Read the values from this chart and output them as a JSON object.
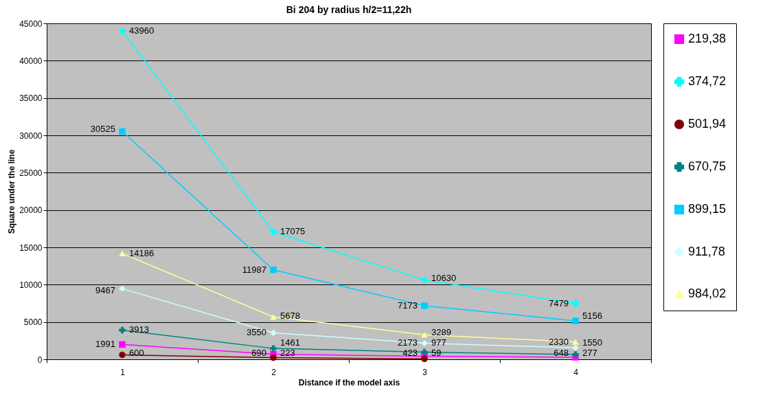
{
  "chart_data": {
    "type": "line",
    "title": "Bi 204 by radius h/2=11,22h",
    "xlabel": "Distance if the model axis",
    "ylabel": "Square under the line",
    "categories": [
      "1",
      "2",
      "3",
      "4"
    ],
    "series": [
      {
        "name": "219,38",
        "color": "#ff00ff",
        "marker": "square",
        "values": [
          1991,
          690,
          423,
          277
        ]
      },
      {
        "name": "374,72",
        "color": "#00ffff",
        "marker": "cross",
        "values": [
          43960,
          17075,
          10630,
          7479
        ]
      },
      {
        "name": "501,94",
        "color": "#800000",
        "marker": "circle",
        "values": [
          600,
          223,
          59,
          null
        ]
      },
      {
        "name": "670,75",
        "color": "#008080",
        "marker": "cross",
        "values": [
          3913,
          1461,
          977,
          648
        ]
      },
      {
        "name": "899,15",
        "color": "#00ccff",
        "marker": "square",
        "values": [
          30525,
          11987,
          7173,
          5156
        ]
      },
      {
        "name": "911,78",
        "color": "#ccffff",
        "marker": "diamond",
        "values": [
          9467,
          3550,
          2173,
          1550
        ]
      },
      {
        "name": "984,02",
        "color": "#ffff99",
        "marker": "triangle",
        "values": [
          14186,
          5678,
          3289,
          2330
        ]
      }
    ],
    "ylim": [
      0,
      45000
    ],
    "yticks": [
      0,
      5000,
      10000,
      15000,
      20000,
      25000,
      30000,
      35000,
      40000,
      45000
    ],
    "grid": "y",
    "legend": "right",
    "data_labels": true
  }
}
